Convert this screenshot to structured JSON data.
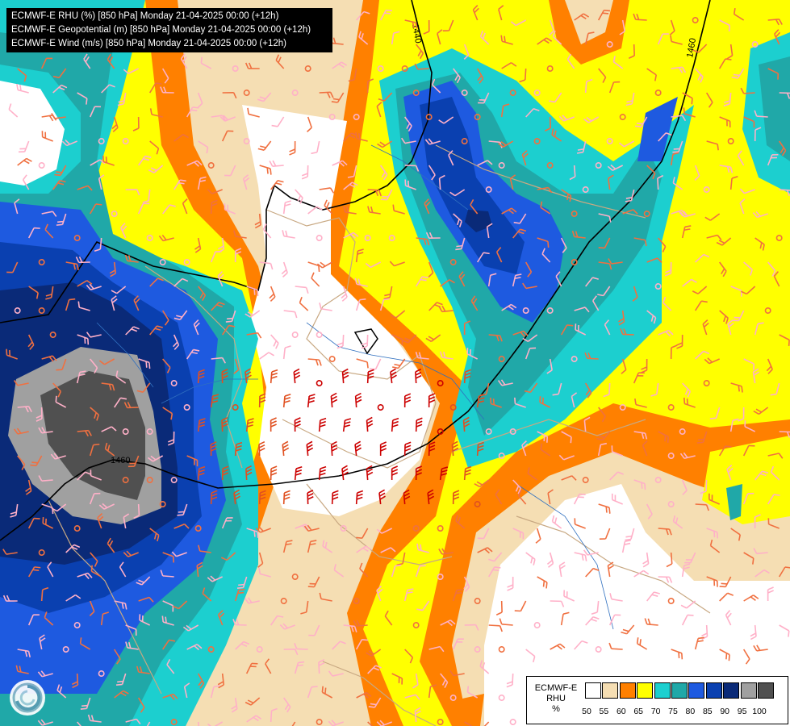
{
  "titles": [
    "ECMWF-E RHU (%) [850 hPa] Monday 21-04-2025 00:00 (+12h)",
    "ECMWF-E Geopotential (m) [850 hPa] Monday 21-04-2025 00:00 (+12h)",
    "ECMWF-E Wind (m/s) [850 hPa] Monday 21-04-2025 00:00 (+12h)"
  ],
  "legend": {
    "line1": "ECMWF-E",
    "line2": "RHU",
    "line3": "%",
    "colors": [
      "#ffffff",
      "#f5deb3",
      "#ff8000",
      "#ffff00",
      "#1ccfcf",
      "#20a8a8",
      "#1e5ae0",
      "#0a40b0",
      "#0a2a78",
      "#a0a0a0",
      "#505050"
    ],
    "ticks": [
      "50",
      "55",
      "60",
      "65",
      "70",
      "75",
      "80",
      "85",
      "90",
      "95",
      "100"
    ]
  },
  "contour_labels": [
    "1440",
    "1460",
    "1460"
  ],
  "icons": {
    "logo": "ecmwf-swirl-logo-icon"
  }
}
